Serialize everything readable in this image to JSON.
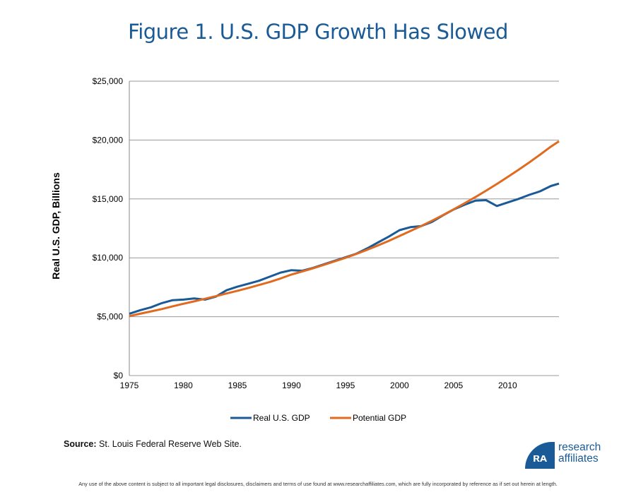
{
  "title": "Figure 1. U.S. GDP Growth Has Slowed",
  "source_label": "Source:",
  "source_text": "St. Louis Federal Reserve Web Site.",
  "logo": {
    "line1": "research",
    "line2": "affiliates",
    "mark": "RA"
  },
  "disclaimer": "Any use of the above content is subject to all important legal disclosures, disclaimers and terms of use found at www.researchaffiliates.com, which are fully incorporated by reference as if set out herein at length.",
  "chart_data": {
    "type": "line",
    "title": "Figure 1. U.S. GDP Growth Has Slowed",
    "xlabel": "",
    "ylabel": "Real U.S. GDP, Billions",
    "xlim": [
      1975,
      2014.75
    ],
    "ylim": [
      0,
      25000
    ],
    "yticks": [
      0,
      5000,
      10000,
      15000,
      20000,
      25000
    ],
    "ytick_labels": [
      "$0",
      "$5,000",
      "$10,000",
      "$15,000",
      "$20,000",
      "$25,000"
    ],
    "xticks": [
      1975,
      1980,
      1985,
      1990,
      1995,
      2000,
      2005,
      2010
    ],
    "xtick_labels": [
      "1975",
      "1980",
      "1985",
      "1990",
      "1995",
      "2000",
      "2005",
      "2010"
    ],
    "grid": true,
    "legend": "bottom",
    "x": [
      1975,
      1976,
      1977,
      1978,
      1979,
      1980,
      1981,
      1982,
      1983,
      1984,
      1985,
      1986,
      1987,
      1988,
      1989,
      1990,
      1991,
      1992,
      1993,
      1994,
      1995,
      1996,
      1997,
      1998,
      1999,
      2000,
      2001,
      2002,
      2003,
      2004,
      2005,
      2006,
      2007,
      2008,
      2009,
      2010,
      2011,
      2012,
      2013,
      2014,
      2014.75
    ],
    "series": [
      {
        "name": "Real U.S. GDP",
        "color": "#1a5a96",
        "values": [
          5250,
          5550,
          5800,
          6150,
          6400,
          6450,
          6550,
          6450,
          6700,
          7250,
          7550,
          7800,
          8050,
          8400,
          8750,
          8950,
          8900,
          9150,
          9450,
          9750,
          10050,
          10350,
          10800,
          11300,
          11800,
          12350,
          12600,
          12700,
          13050,
          13600,
          14100,
          14500,
          14850,
          14900,
          14400,
          14700,
          15000,
          15350,
          15650,
          16100,
          16300
        ]
      },
      {
        "name": "Potential GDP",
        "color": "#e06a1f",
        "values": [
          5050,
          5250,
          5450,
          5650,
          5880,
          6100,
          6300,
          6520,
          6740,
          6970,
          7200,
          7440,
          7690,
          7950,
          8250,
          8580,
          8840,
          9110,
          9400,
          9700,
          10000,
          10330,
          10680,
          11050,
          11440,
          11850,
          12270,
          12700,
          13150,
          13620,
          14110,
          14620,
          15150,
          15700,
          16270,
          16860,
          17470,
          18100,
          18760,
          19440,
          19900
        ]
      }
    ]
  }
}
